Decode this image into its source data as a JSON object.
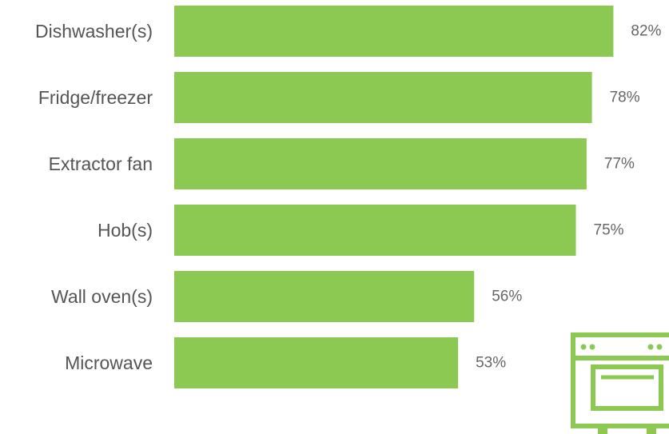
{
  "chart_data": {
    "type": "bar",
    "orientation": "horizontal",
    "title": "",
    "xlabel": "",
    "ylabel": "",
    "categories": [
      "Dishwasher(s)",
      "Fridge/freezer",
      "Extractor fan",
      "Hob(s)",
      "Wall oven(s)",
      "Microwave"
    ],
    "values": [
      82,
      78,
      77,
      75,
      56,
      53
    ],
    "value_labels": [
      "82%",
      "78%",
      "77%",
      "75%",
      "56%",
      "53%"
    ],
    "xlim": [
      0,
      100
    ],
    "grid": false,
    "legend": "none",
    "bar_color": "#8cc952"
  },
  "decoration": {
    "icon": "oven-icon",
    "icon_color": "#8cc952"
  }
}
